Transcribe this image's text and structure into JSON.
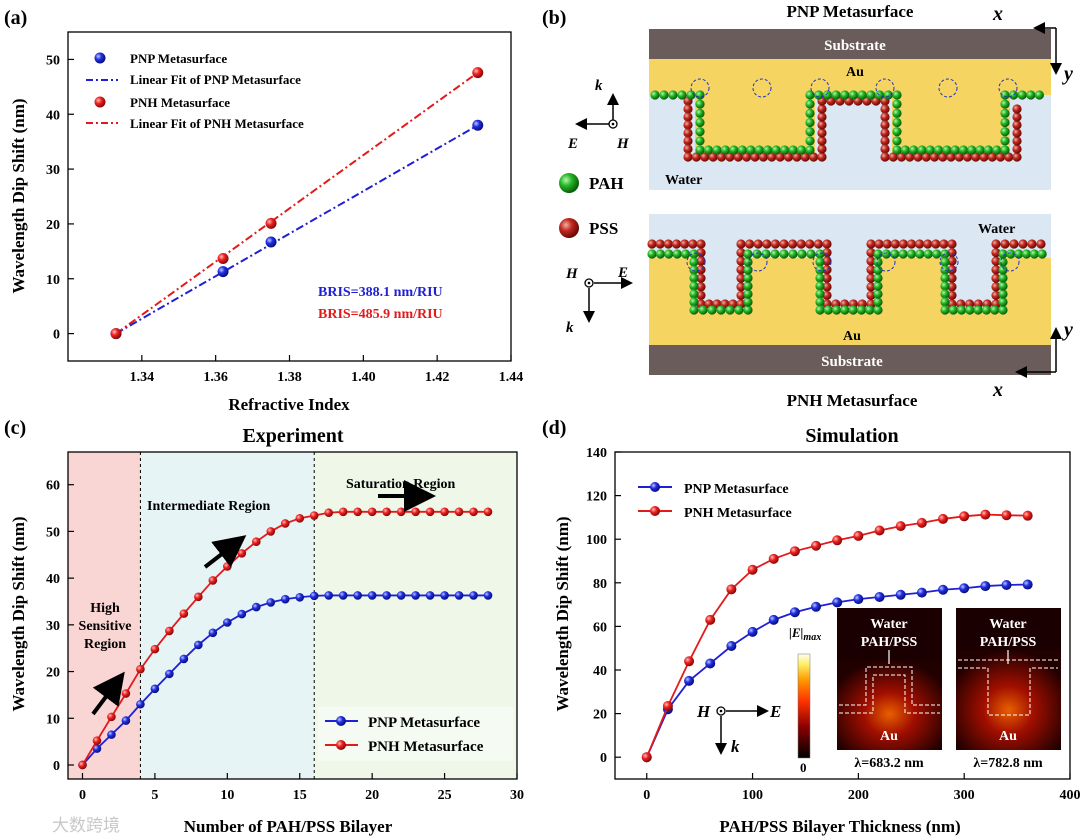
{
  "watermark": "大数跨境",
  "panel_a": {
    "label": "(a)",
    "legend": {
      "pnp_points": "PNP Metasurface",
      "pnp_fit": "Linear Fit of  PNP Metasurface",
      "pnh_points": "PNH Metasurface",
      "pnh_fit": "Linear Fit of  PNH Metasurface"
    },
    "bris_pnp": "BRIS=388.1 nm/RIU",
    "bris_pnh": "BRIS=485.9 nm/RIU"
  },
  "panel_b": {
    "label": "(b)",
    "top_title": "PNP Metasurface",
    "bottom_title": "PNH Metasurface",
    "substrate": "Substrate",
    "au": "Au",
    "water": "Water",
    "pah": "PAH",
    "pss": "PSS",
    "k": "k",
    "E": "E",
    "H": "H",
    "x": "x",
    "y": "y"
  },
  "panel_c": {
    "label": "(c)",
    "region_high": [
      "High",
      "Sensitive",
      "Region"
    ],
    "region_mid": "Intermediate Region",
    "region_sat": "Saturation Region"
  },
  "panel_d": {
    "label": "(d)",
    "colorbar_label": "|E|max",
    "colorbar_zero": "0",
    "H": "H",
    "E": "E",
    "k": "k",
    "inset1": {
      "water": "Water",
      "layer": "PAH/PSS",
      "au": "Au",
      "lambda": "λ=683.2 nm"
    },
    "inset2": {
      "water": "Water",
      "layer": "PAH/PSS",
      "au": "Au",
      "lambda": "λ=782.8 nm"
    }
  },
  "chart_data": [
    {
      "panel": "a",
      "type": "scatter",
      "title": "",
      "xlabel": "Refractive Index",
      "ylabel": "Wavelength Dip Shift (nm)",
      "xlim": [
        1.32,
        1.44
      ],
      "ylim": [
        -5,
        55
      ],
      "xticks": [
        1.34,
        1.36,
        1.38,
        1.4,
        1.42,
        1.44
      ],
      "yticks": [
        0,
        10,
        20,
        30,
        40,
        50
      ],
      "legend_position": "top-left",
      "series": [
        {
          "name": "PNP Metasurface",
          "color": "#1f1fd6",
          "x": [
            1.333,
            1.362,
            1.375,
            1.431
          ],
          "y": [
            0,
            11.3,
            16.7,
            38.0
          ]
        },
        {
          "name": "PNH Metasurface",
          "color": "#e31a1a",
          "x": [
            1.333,
            1.362,
            1.375,
            1.431
          ],
          "y": [
            0,
            13.7,
            20.1,
            47.6
          ]
        }
      ],
      "fits": [
        {
          "name": "Linear Fit of  PNP Metasurface",
          "color": "#1f1fd6",
          "x": [
            1.333,
            1.431
          ],
          "y": [
            0,
            38.0
          ]
        },
        {
          "name": "Linear Fit of  PNH Metasurface",
          "color": "#e31a1a",
          "x": [
            1.333,
            1.431
          ],
          "y": [
            0,
            47.6
          ]
        }
      ]
    },
    {
      "panel": "c",
      "type": "line",
      "title": "Experiment",
      "xlabel": "Number of PAH/PSS Bilayer",
      "ylabel": "Wavelength Dip Shift (nm)",
      "xlim": [
        -1,
        30
      ],
      "ylim": [
        -3,
        67
      ],
      "xticks": [
        0,
        5,
        10,
        15,
        20,
        25,
        30
      ],
      "yticks": [
        0,
        10,
        20,
        30,
        40,
        50,
        60
      ],
      "region_bounds": [
        4,
        16
      ],
      "legend_position": "bottom-right",
      "x": [
        0,
        1,
        2,
        3,
        4,
        5,
        6,
        7,
        8,
        9,
        10,
        11,
        12,
        13,
        14,
        15,
        16,
        17,
        18,
        19,
        20,
        21,
        22,
        23,
        24,
        25,
        26,
        27,
        28
      ],
      "series": [
        {
          "name": "PNP Metasurface",
          "color": "#1f1fd6",
          "values": [
            0,
            3.5,
            6.5,
            9.5,
            13,
            16.3,
            19.5,
            22.7,
            25.7,
            28.3,
            30.5,
            32.3,
            33.8,
            34.8,
            35.5,
            35.9,
            36.2,
            36.3,
            36.3,
            36.3,
            36.3,
            36.3,
            36.3,
            36.3,
            36.3,
            36.3,
            36.3,
            36.3,
            36.3
          ]
        },
        {
          "name": "PNH Metasurface",
          "color": "#e31a1a",
          "values": [
            0,
            5.2,
            10.3,
            15.3,
            20.5,
            24.8,
            28.7,
            32.4,
            36.0,
            39.5,
            42.5,
            45.3,
            47.8,
            50.0,
            51.7,
            52.8,
            53.4,
            54.0,
            54.2,
            54.2,
            54.2,
            54.2,
            54.2,
            54.2,
            54.2,
            54.2,
            54.2,
            54.2,
            54.2
          ]
        }
      ]
    },
    {
      "panel": "d",
      "type": "line",
      "title": "Simulation",
      "xlabel": "PAH/PSS Bilayer Thickness (nm)",
      "ylabel": "Wavelength Dip Shift (nm)",
      "xlim": [
        -30,
        400
      ],
      "ylim": [
        -10,
        140
      ],
      "xticks": [
        0,
        100,
        200,
        300,
        400
      ],
      "yticks": [
        0,
        20,
        40,
        60,
        80,
        100,
        120,
        140
      ],
      "legend_position": "top-left",
      "x": [
        0,
        20,
        40,
        60,
        80,
        100,
        120,
        140,
        160,
        180,
        200,
        220,
        240,
        260,
        280,
        300,
        320,
        340,
        360
      ],
      "series": [
        {
          "name": "PNP Metasurface",
          "color": "#1f1fd6",
          "values": [
            0,
            22,
            35,
            43,
            51,
            57.5,
            63,
            66.5,
            69,
            71,
            72.5,
            73.5,
            74.5,
            75.5,
            76.8,
            77.5,
            78.5,
            79,
            79.2
          ]
        },
        {
          "name": "PNH Metasurface",
          "color": "#e31a1a",
          "values": [
            0,
            23.5,
            44,
            63,
            77,
            86,
            91,
            94.5,
            97,
            99.5,
            101.5,
            104,
            106,
            107.5,
            109.3,
            110.5,
            111.3,
            111,
            110.8
          ]
        }
      ]
    }
  ]
}
